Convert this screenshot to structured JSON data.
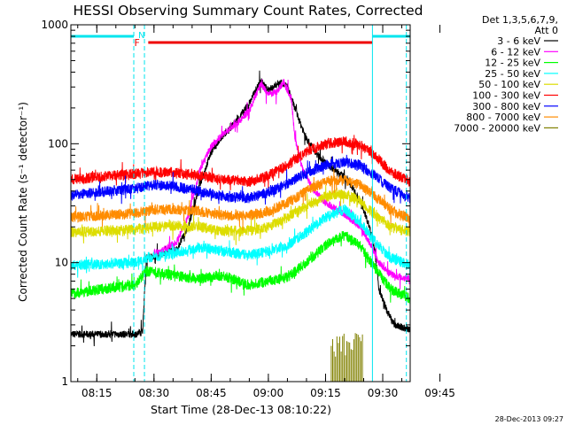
{
  "chart_data": {
    "type": "line",
    "title": "HESSI Observing Summary Count Rates, Corrected",
    "xlabel": "Start Time (28-Dec-13 08:10:22)",
    "ylabel": "Corrected Count Rate (s⁻¹ detector⁻¹)",
    "yscale": "log",
    "ylim": [
      1,
      1000
    ],
    "xlim_minutes": [
      8.2,
      97.2
    ],
    "x_ticks": [
      "08:15",
      "08:30",
      "08:45",
      "09:00",
      "09:15",
      "09:30",
      "09:45"
    ],
    "y_ticks": [
      "1",
      "10",
      "100",
      "1000"
    ],
    "legend_header": [
      "Det 1,3,5,6,7,9,",
      "Att 0"
    ],
    "legend_position": "right",
    "series": [
      {
        "name": "3 - 6 keV",
        "color": "#000000",
        "points": [
          [
            8.2,
            2.5
          ],
          [
            25,
            2.5
          ],
          [
            27,
            2.6
          ],
          [
            28,
            11
          ],
          [
            33,
            12
          ],
          [
            36,
            13
          ],
          [
            39,
            20
          ],
          [
            42,
            45
          ],
          [
            45,
            85
          ],
          [
            48,
            115
          ],
          [
            52,
            160
          ],
          [
            55,
            220
          ],
          [
            58,
            340
          ],
          [
            60,
            280
          ],
          [
            63,
            330
          ],
          [
            65,
            300
          ],
          [
            68,
            160
          ],
          [
            70,
            110
          ],
          [
            73,
            80
          ],
          [
            76,
            65
          ],
          [
            79,
            55
          ],
          [
            81,
            48
          ],
          [
            83,
            38
          ],
          [
            85,
            28
          ],
          [
            87,
            18
          ],
          [
            88,
            12
          ],
          [
            89,
            6
          ],
          [
            91,
            4
          ],
          [
            93,
            3
          ],
          [
            96,
            2.8
          ],
          [
            97.2,
            2.7
          ]
        ]
      },
      {
        "name": "6 - 12 keV",
        "color": "#ff00ff",
        "points": [
          [
            30,
            12
          ],
          [
            33,
            13
          ],
          [
            36,
            15
          ],
          [
            39,
            25
          ],
          [
            42,
            60
          ],
          [
            45,
            95
          ],
          [
            48,
            120
          ],
          [
            52,
            150
          ],
          [
            55,
            190
          ],
          [
            58,
            320
          ],
          [
            60,
            260
          ],
          [
            62,
            270
          ],
          [
            64,
            330
          ],
          [
            66,
            240
          ],
          [
            67,
            110
          ],
          [
            69,
            60
          ],
          [
            72,
            40
          ],
          [
            75,
            32
          ],
          [
            78,
            28
          ],
          [
            81,
            24
          ],
          [
            84,
            20
          ],
          [
            87,
            14
          ],
          [
            89,
            10
          ],
          [
            92,
            8
          ],
          [
            95,
            7.5
          ],
          [
            97.2,
            7.5
          ]
        ]
      },
      {
        "name": "12 - 25 keV",
        "color": "#00ff00",
        "points": [
          [
            8.2,
            5.5
          ],
          [
            25,
            6.5
          ],
          [
            28,
            8.5
          ],
          [
            35,
            7.8
          ],
          [
            42,
            7.3
          ],
          [
            48,
            7.8
          ],
          [
            55,
            6.5
          ],
          [
            60,
            7
          ],
          [
            65,
            7.5
          ],
          [
            70,
            10
          ],
          [
            75,
            14
          ],
          [
            80,
            17
          ],
          [
            84,
            14
          ],
          [
            88,
            9
          ],
          [
            92,
            6
          ],
          [
            97.2,
            5
          ]
        ]
      },
      {
        "name": "25 - 50 keV",
        "color": "#00ffff",
        "points": [
          [
            8.2,
            9.5
          ],
          [
            25,
            10
          ],
          [
            28,
            11
          ],
          [
            35,
            12
          ],
          [
            42,
            13.5
          ],
          [
            48,
            12.5
          ],
          [
            55,
            11.5
          ],
          [
            60,
            12.5
          ],
          [
            65,
            14
          ],
          [
            70,
            18
          ],
          [
            75,
            24
          ],
          [
            80,
            28
          ],
          [
            84,
            22
          ],
          [
            88,
            15
          ],
          [
            92,
            11
          ],
          [
            97.2,
            9.5
          ]
        ]
      },
      {
        "name": "50 - 100 keV",
        "color": "#dddd00",
        "points": [
          [
            8.2,
            18
          ],
          [
            25,
            19
          ],
          [
            30,
            20
          ],
          [
            35,
            20.5
          ],
          [
            42,
            20
          ],
          [
            48,
            18.5
          ],
          [
            55,
            18.5
          ],
          [
            60,
            20
          ],
          [
            65,
            24
          ],
          [
            70,
            30
          ],
          [
            75,
            36
          ],
          [
            80,
            38
          ],
          [
            84,
            33
          ],
          [
            88,
            25
          ],
          [
            92,
            20
          ],
          [
            97.2,
            18
          ]
        ]
      },
      {
        "name": "100 - 300 keV",
        "color": "#ff0000",
        "points": [
          [
            8.2,
            50
          ],
          [
            25,
            56
          ],
          [
            30,
            58
          ],
          [
            35,
            57
          ],
          [
            42,
            54
          ],
          [
            48,
            50
          ],
          [
            55,
            48
          ],
          [
            60,
            54
          ],
          [
            65,
            66
          ],
          [
            70,
            85
          ],
          [
            75,
            100
          ],
          [
            80,
            105
          ],
          [
            84,
            98
          ],
          [
            88,
            80
          ],
          [
            92,
            58
          ],
          [
            97.2,
            48
          ]
        ]
      },
      {
        "name": "300 - 800 keV",
        "color": "#0000ff",
        "points": [
          [
            8.2,
            37
          ],
          [
            25,
            42
          ],
          [
            30,
            45
          ],
          [
            35,
            44
          ],
          [
            42,
            40
          ],
          [
            48,
            36
          ],
          [
            55,
            35
          ],
          [
            60,
            39
          ],
          [
            65,
            46
          ],
          [
            70,
            57
          ],
          [
            75,
            66
          ],
          [
            80,
            70
          ],
          [
            84,
            66
          ],
          [
            88,
            54
          ],
          [
            92,
            42
          ],
          [
            97.2,
            35
          ]
        ]
      },
      {
        "name": "800 - 7000 keV",
        "color": "#ff8c00",
        "points": [
          [
            8.2,
            24
          ],
          [
            25,
            26
          ],
          [
            30,
            28
          ],
          [
            35,
            28
          ],
          [
            42,
            27
          ],
          [
            48,
            25
          ],
          [
            55,
            25
          ],
          [
            60,
            27
          ],
          [
            65,
            32
          ],
          [
            70,
            40
          ],
          [
            75,
            48
          ],
          [
            80,
            50
          ],
          [
            84,
            45
          ],
          [
            88,
            36
          ],
          [
            92,
            28
          ],
          [
            97.2,
            23
          ]
        ]
      },
      {
        "name": "7000 - 20000 keV",
        "color": "#808000",
        "points": [
          [
            76.5,
            1
          ],
          [
            76.5,
            2.5
          ],
          [
            85,
            2.5
          ],
          [
            85,
            1
          ]
        ]
      }
    ],
    "annotations": {
      "night_label": "N",
      "flare_label": "F",
      "night_color": "#00e5ee",
      "flare_color": "#ee0000",
      "night_segments": [
        [
          8.2,
          24.7
        ],
        [
          87.3,
          97.2
        ]
      ],
      "flare_segment": [
        28.5,
        87.3
      ],
      "vertical_lines": [
        {
          "x": 24.7,
          "style": "dashed"
        },
        {
          "x": 27.5,
          "style": "dashed"
        },
        {
          "x": 87.3,
          "style": "solid"
        },
        {
          "x": 96.2,
          "style": "dashed"
        }
      ]
    }
  },
  "footer_timestamp": "28-Dec-2013 09:27"
}
